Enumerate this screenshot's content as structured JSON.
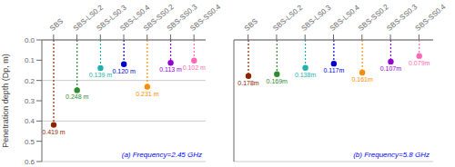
{
  "chart_data": [
    {
      "type": "lollipop",
      "annotation": "(a) Frequency=2.45 GHz",
      "ylabel": "Penetration depth (Dp, m)",
      "categories": [
        "SBS",
        "SBS-LS0.2",
        "SBS-LS0.3",
        "SBS-LS0.4",
        "SBS-SS0.2",
        "SBS-SS0.3",
        "SBS-SS0.4"
      ],
      "values": [
        0.419,
        0.248,
        0.139,
        0.12,
        0.231,
        0.113,
        0.102
      ],
      "value_labels": [
        "0.419 m",
        "0.248 m",
        "0.139 m",
        "0.120 m",
        "0.231 m",
        "0.113 m",
        "0.102 m"
      ],
      "data_labels": true,
      "colors": [
        "#8B2500",
        "#2e8b2e",
        "#20b2aa",
        "#0000cd",
        "#ff8c00",
        "#9400d3",
        "#ff69b4"
      ],
      "ylim": [
        0.6,
        0.0
      ],
      "yticks": [
        {
          "value": 0.0,
          "label": "0.0"
        },
        0.1,
        0.2,
        0.3,
        0.4,
        0.5,
        0.6
      ],
      "grid": true
    },
    {
      "type": "lollipop",
      "annotation": "(b) Frequency=5.8 GHz",
      "categories": [
        "SBS",
        "SBS-LS0.2",
        "SBS-LS0.3",
        "SBS-LS0.4",
        "SBS-SS0.2",
        "SBS-SS0.3",
        "SBS-SS0.4"
      ],
      "values": [
        0.178,
        0.169,
        0.138,
        0.117,
        0.161,
        0.107,
        0.079
      ],
      "value_labels": [
        "0.178m",
        "0.169m",
        "0.138m",
        "0.117m",
        "0.161m",
        "0.107m",
        "0.079m"
      ],
      "data_labels": true,
      "colors": [
        "#8B2500",
        "#2e8b2e",
        "#20b2aa",
        "#0000cd",
        "#ff8c00",
        "#9400d3",
        "#ff69b4"
      ],
      "ylim": [
        0.6,
        0.0
      ],
      "yticks": [
        0.0,
        0.1,
        0.2,
        0.3,
        0.4,
        0.5,
        0.6
      ],
      "grid": true,
      "tick_labels": "x"
    }
  ]
}
